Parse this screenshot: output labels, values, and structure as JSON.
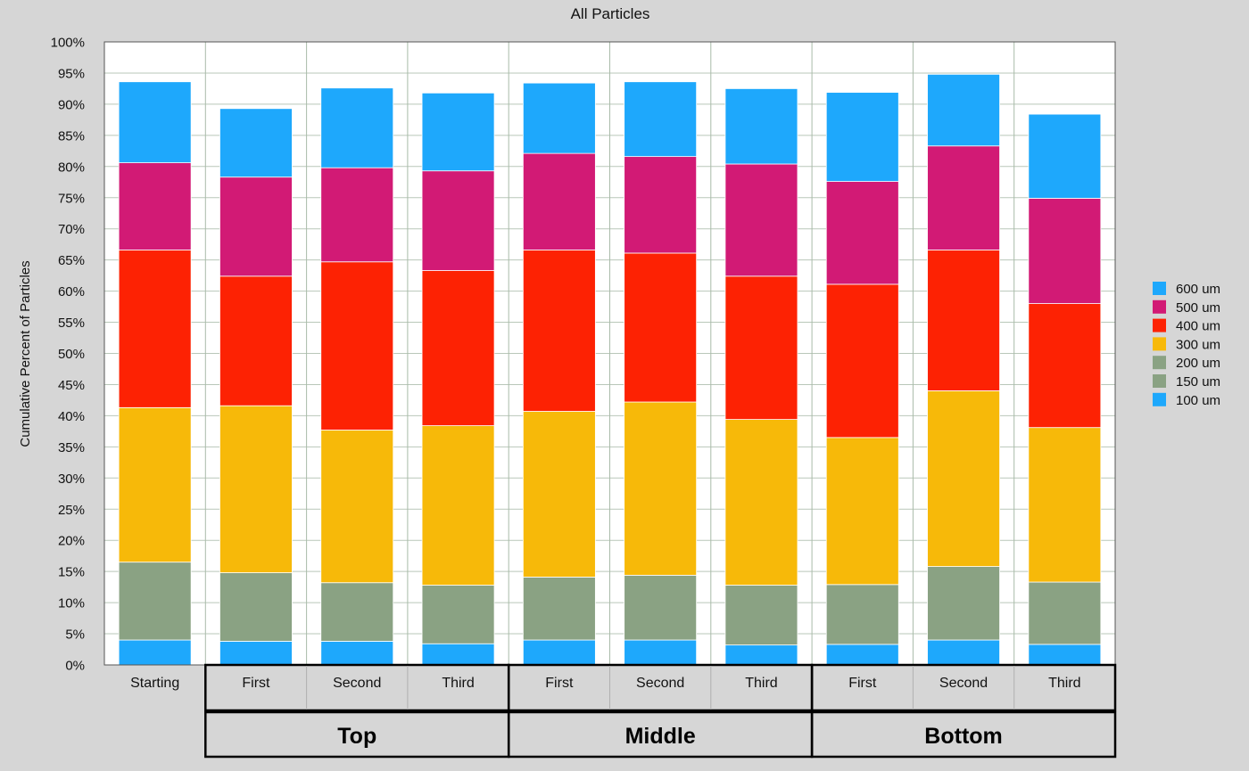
{
  "chart_data": {
    "type": "bar",
    "title": "All Particles",
    "ylabel": "Cumulative Percent of Particles",
    "ylim": [
      0,
      100
    ],
    "ytick_labels": [
      "0%",
      "5%",
      "10%",
      "15%",
      "20%",
      "25%",
      "30%",
      "35%",
      "40%",
      "45%",
      "50%",
      "55%",
      "60%",
      "65%",
      "70%",
      "75%",
      "80%",
      "85%",
      "90%",
      "95%",
      "100%"
    ],
    "categories": [
      "Starting",
      "First",
      "Second",
      "Third",
      "First",
      "Second",
      "Third",
      "First",
      "Second",
      "Third"
    ],
    "groups": [
      {
        "label": "Top",
        "start": 1,
        "end": 3
      },
      {
        "label": "Middle",
        "start": 4,
        "end": 6
      },
      {
        "label": "Bottom",
        "start": 7,
        "end": 9
      }
    ],
    "cumulative": [
      [
        4.0,
        16.5,
        16.5,
        41.3,
        66.6,
        80.6,
        93.6
      ],
      [
        3.8,
        14.8,
        14.8,
        41.6,
        62.4,
        78.3,
        89.3
      ],
      [
        3.8,
        13.2,
        13.2,
        37.7,
        64.7,
        79.8,
        92.6
      ],
      [
        3.4,
        12.8,
        12.8,
        38.4,
        63.3,
        79.3,
        91.8
      ],
      [
        4.0,
        14.1,
        14.1,
        40.7,
        66.6,
        82.1,
        93.4
      ],
      [
        4.0,
        14.4,
        14.4,
        42.2,
        66.1,
        81.6,
        93.6
      ],
      [
        3.2,
        12.8,
        12.8,
        39.4,
        62.4,
        80.4,
        92.5
      ],
      [
        3.3,
        12.9,
        12.9,
        36.5,
        61.1,
        77.6,
        91.9
      ],
      [
        4.0,
        15.8,
        15.8,
        44.0,
        66.6,
        83.3,
        94.8
      ],
      [
        3.3,
        13.3,
        13.3,
        38.1,
        58.0,
        74.9,
        88.4
      ]
    ],
    "series": [
      {
        "name": "100 um",
        "color": "#1ea8fc",
        "values": [
          4.0,
          3.8,
          3.8,
          3.4,
          4.0,
          4.0,
          3.2,
          3.3,
          4.0,
          3.3
        ]
      },
      {
        "name": "150 um",
        "color": "#8aa283",
        "values": [
          12.5,
          11.0,
          9.4,
          9.4,
          10.1,
          10.4,
          9.6,
          9.6,
          11.8,
          10.0
        ]
      },
      {
        "name": "200 um",
        "color": "#8aa283",
        "values": [
          0,
          0,
          0,
          0,
          0,
          0,
          0,
          0,
          0,
          0
        ]
      },
      {
        "name": "300 um",
        "color": "#f7b909",
        "values": [
          24.8,
          26.8,
          24.5,
          25.6,
          26.6,
          27.8,
          26.6,
          23.6,
          28.2,
          24.8
        ]
      },
      {
        "name": "400 um",
        "color": "#fd2203",
        "values": [
          25.3,
          20.8,
          27.0,
          24.9,
          25.9,
          23.9,
          23.0,
          24.6,
          22.6,
          19.9
        ]
      },
      {
        "name": "500 um",
        "color": "#d21a75",
        "values": [
          14.0,
          15.9,
          15.1,
          16.0,
          15.5,
          15.5,
          18.0,
          16.5,
          16.7,
          16.9
        ]
      },
      {
        "name": "600 um",
        "color": "#1ea8fc",
        "values": [
          13.0,
          11.0,
          12.8,
          12.5,
          11.3,
          12.0,
          12.1,
          14.3,
          11.5,
          13.5
        ]
      }
    ],
    "legend_order": [
      "600 um",
      "500 um",
      "400 um",
      "300 um",
      "200 um",
      "150 um",
      "100 um"
    ],
    "legend_position": "right",
    "grid": true
  }
}
